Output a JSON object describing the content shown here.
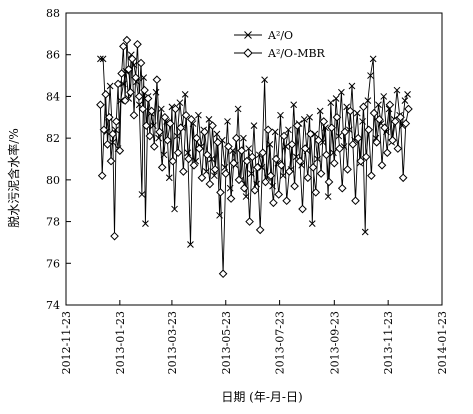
{
  "chart_data": {
    "type": "scatter",
    "xlabel": "日期 (年-月-日)",
    "ylabel": "脱水污泥含水率/%",
    "xlim": [
      "2012-11-23",
      "2014-01-23"
    ],
    "ylim": [
      74,
      88
    ],
    "x_ticks": [
      "2012-11-23",
      "2013-01-23",
      "2013-03-23",
      "2013-05-23",
      "2013-07-23",
      "2013-09-23",
      "2013-11-23",
      "2014-01-23"
    ],
    "y_ticks": [
      74,
      76,
      78,
      80,
      82,
      84,
      86,
      88
    ],
    "legend_position": "top-right",
    "series": [
      {
        "name": "A²/O",
        "marker": "x",
        "points": [
          [
            "2013-01-01",
            85.8
          ],
          [
            "2013-01-04",
            85.8
          ],
          [
            "2013-01-08",
            82.3
          ],
          [
            "2013-01-10",
            83.0
          ],
          [
            "2013-01-12",
            84.5
          ],
          [
            "2013-01-15",
            81.8
          ],
          [
            "2013-01-18",
            82.4
          ],
          [
            "2013-01-21",
            81.5
          ],
          [
            "2013-01-24",
            83.8
          ],
          [
            "2013-01-27",
            84.6
          ],
          [
            "2013-01-30",
            85.2
          ],
          [
            "2013-02-02",
            83.9
          ],
          [
            "2013-02-05",
            86.0
          ],
          [
            "2013-02-08",
            85.5
          ],
          [
            "2013-02-11",
            84.7
          ],
          [
            "2013-02-14",
            83.6
          ],
          [
            "2013-02-17",
            79.3
          ],
          [
            "2013-02-19",
            84.9
          ],
          [
            "2013-02-21",
            77.9
          ],
          [
            "2013-02-24",
            84.0
          ],
          [
            "2013-02-27",
            83.2
          ],
          [
            "2013-03-02",
            82.6
          ],
          [
            "2013-03-05",
            84.2
          ],
          [
            "2013-03-08",
            82.0
          ],
          [
            "2013-03-11",
            83.4
          ],
          [
            "2013-03-14",
            81.2
          ],
          [
            "2013-03-17",
            82.8
          ],
          [
            "2013-03-20",
            80.1
          ],
          [
            "2013-03-23",
            83.5
          ],
          [
            "2013-03-26",
            78.6
          ],
          [
            "2013-03-29",
            82.1
          ],
          [
            "2013-04-01",
            83.7
          ],
          [
            "2013-04-04",
            82.5
          ],
          [
            "2013-04-07",
            84.1
          ],
          [
            "2013-04-10",
            81.3
          ],
          [
            "2013-04-13",
            76.9
          ],
          [
            "2013-04-16",
            82.7
          ],
          [
            "2013-04-19",
            80.9
          ],
          [
            "2013-04-22",
            83.1
          ],
          [
            "2013-04-25",
            81.6
          ],
          [
            "2013-04-28",
            82.4
          ],
          [
            "2013-05-01",
            80.4
          ],
          [
            "2013-05-04",
            82.9
          ],
          [
            "2013-05-07",
            81.0
          ],
          [
            "2013-05-10",
            80.2
          ],
          [
            "2013-05-13",
            82.2
          ],
          [
            "2013-05-16",
            78.3
          ],
          [
            "2013-05-19",
            81.9
          ],
          [
            "2013-05-22",
            80.6
          ],
          [
            "2013-05-25",
            82.8
          ],
          [
            "2013-05-28",
            79.6
          ],
          [
            "2013-05-31",
            81.4
          ],
          [
            "2013-06-03",
            80.7
          ],
          [
            "2013-06-06",
            83.4
          ],
          [
            "2013-06-09",
            80.0
          ],
          [
            "2013-06-12",
            82.0
          ],
          [
            "2013-06-15",
            79.2
          ],
          [
            "2013-06-18",
            81.5
          ],
          [
            "2013-06-21",
            80.3
          ],
          [
            "2013-06-24",
            82.6
          ],
          [
            "2013-06-27",
            79.8
          ],
          [
            "2013-06-30",
            81.2
          ],
          [
            "2013-07-03",
            80.6
          ],
          [
            "2013-07-06",
            84.8
          ],
          [
            "2013-07-09",
            80.1
          ],
          [
            "2013-07-12",
            81.7
          ],
          [
            "2013-07-15",
            79.7
          ],
          [
            "2013-07-18",
            82.3
          ],
          [
            "2013-07-21",
            80.8
          ],
          [
            "2013-07-24",
            83.1
          ],
          [
            "2013-07-27",
            80.2
          ],
          [
            "2013-07-30",
            81.6
          ],
          [
            "2013-08-02",
            82.4
          ],
          [
            "2013-08-05",
            80.5
          ],
          [
            "2013-08-08",
            83.6
          ],
          [
            "2013-08-11",
            81.1
          ],
          [
            "2013-08-14",
            82.7
          ],
          [
            "2013-08-17",
            80.7
          ],
          [
            "2013-08-20",
            82.9
          ],
          [
            "2013-08-23",
            81.4
          ],
          [
            "2013-08-26",
            83.0
          ],
          [
            "2013-08-29",
            77.9
          ],
          [
            "2013-09-01",
            82.2
          ],
          [
            "2013-09-04",
            81.0
          ],
          [
            "2013-09-07",
            83.3
          ],
          [
            "2013-09-10",
            81.8
          ],
          [
            "2013-09-13",
            82.5
          ],
          [
            "2013-09-16",
            79.2
          ],
          [
            "2013-09-19",
            83.7
          ],
          [
            "2013-09-22",
            81.3
          ],
          [
            "2013-09-25",
            83.9
          ],
          [
            "2013-09-28",
            82.1
          ],
          [
            "2013-10-01",
            84.2
          ],
          [
            "2013-10-04",
            81.6
          ],
          [
            "2013-10-07",
            83.5
          ],
          [
            "2013-10-10",
            82.4
          ],
          [
            "2013-10-13",
            84.5
          ],
          [
            "2013-10-16",
            81.9
          ],
          [
            "2013-10-19",
            83.2
          ],
          [
            "2013-10-22",
            80.8
          ],
          [
            "2013-10-25",
            82.8
          ],
          [
            "2013-10-28",
            77.5
          ],
          [
            "2013-10-31",
            83.8
          ],
          [
            "2013-11-03",
            85.0
          ],
          [
            "2013-11-06",
            85.8
          ],
          [
            "2013-11-09",
            82.0
          ],
          [
            "2013-11-12",
            83.6
          ],
          [
            "2013-11-15",
            82.7
          ],
          [
            "2013-11-18",
            84.0
          ],
          [
            "2013-11-21",
            82.3
          ],
          [
            "2013-11-24",
            83.4
          ],
          [
            "2013-11-27",
            81.8
          ],
          [
            "2013-11-30",
            82.9
          ],
          [
            "2013-12-03",
            84.3
          ],
          [
            "2013-12-06",
            83.1
          ],
          [
            "2013-12-09",
            82.6
          ],
          [
            "2013-12-12",
            83.8
          ],
          [
            "2013-12-15",
            84.1
          ]
        ]
      },
      {
        "name": "A²/O-MBR",
        "marker": "diamond",
        "points": [
          [
            "2013-01-01",
            83.6
          ],
          [
            "2013-01-03",
            80.2
          ],
          [
            "2013-01-05",
            82.4
          ],
          [
            "2013-01-07",
            84.1
          ],
          [
            "2013-01-09",
            81.7
          ],
          [
            "2013-01-11",
            83.0
          ],
          [
            "2013-01-13",
            80.9
          ],
          [
            "2013-01-15",
            82.2
          ],
          [
            "2013-01-17",
            77.3
          ],
          [
            "2013-01-19",
            82.8
          ],
          [
            "2013-01-21",
            84.6
          ],
          [
            "2013-01-23",
            81.4
          ],
          [
            "2013-01-25",
            85.1
          ],
          [
            "2013-01-27",
            86.4
          ],
          [
            "2013-01-29",
            83.8
          ],
          [
            "2013-01-31",
            86.7
          ],
          [
            "2013-02-02",
            85.3
          ],
          [
            "2013-02-04",
            84.2
          ],
          [
            "2013-02-06",
            85.8
          ],
          [
            "2013-02-08",
            83.1
          ],
          [
            "2013-02-10",
            84.9
          ],
          [
            "2013-02-12",
            86.5
          ],
          [
            "2013-02-14",
            84.0
          ],
          [
            "2013-02-16",
            85.6
          ],
          [
            "2013-02-18",
            83.4
          ],
          [
            "2013-02-20",
            84.3
          ],
          [
            "2013-02-22",
            82.6
          ],
          [
            "2013-02-24",
            83.9
          ],
          [
            "2013-02-26",
            82.1
          ],
          [
            "2013-02-28",
            83.3
          ],
          [
            "2013-03-03",
            81.6
          ],
          [
            "2013-03-06",
            84.8
          ],
          [
            "2013-03-09",
            82.3
          ],
          [
            "2013-03-12",
            80.6
          ],
          [
            "2013-03-15",
            83.0
          ],
          [
            "2013-03-18",
            81.9
          ],
          [
            "2013-03-21",
            82.7
          ],
          [
            "2013-03-24",
            80.9
          ],
          [
            "2013-03-27",
            83.4
          ],
          [
            "2013-03-30",
            81.3
          ],
          [
            "2013-04-02",
            82.5
          ],
          [
            "2013-04-05",
            80.4
          ],
          [
            "2013-04-08",
            83.1
          ],
          [
            "2013-04-11",
            81.0
          ],
          [
            "2013-04-14",
            82.9
          ],
          [
            "2013-04-17",
            80.7
          ],
          [
            "2013-04-20",
            82.0
          ],
          [
            "2013-04-23",
            81.5
          ],
          [
            "2013-04-26",
            80.1
          ],
          [
            "2013-04-29",
            82.3
          ],
          [
            "2013-05-02",
            81.2
          ],
          [
            "2013-05-05",
            79.8
          ],
          [
            "2013-05-08",
            82.6
          ],
          [
            "2013-05-11",
            80.5
          ],
          [
            "2013-05-14",
            81.8
          ],
          [
            "2013-05-17",
            79.4
          ],
          [
            "2013-05-20",
            75.5
          ],
          [
            "2013-05-23",
            80.3
          ],
          [
            "2013-05-26",
            81.6
          ],
          [
            "2013-05-29",
            79.1
          ],
          [
            "2013-06-01",
            80.8
          ],
          [
            "2013-06-04",
            82.0
          ],
          [
            "2013-06-07",
            80.0
          ],
          [
            "2013-06-10",
            81.4
          ],
          [
            "2013-06-13",
            79.6
          ],
          [
            "2013-06-16",
            80.9
          ],
          [
            "2013-06-19",
            78.0
          ],
          [
            "2013-06-22",
            81.1
          ],
          [
            "2013-06-25",
            79.5
          ],
          [
            "2013-06-28",
            80.6
          ],
          [
            "2013-07-01",
            77.6
          ],
          [
            "2013-07-04",
            81.3
          ],
          [
            "2013-07-07",
            79.9
          ],
          [
            "2013-07-10",
            82.4
          ],
          [
            "2013-07-13",
            80.2
          ],
          [
            "2013-07-16",
            78.9
          ],
          [
            "2013-07-19",
            81.0
          ],
          [
            "2013-07-22",
            79.3
          ],
          [
            "2013-07-25",
            80.7
          ],
          [
            "2013-07-28",
            82.1
          ],
          [
            "2013-07-31",
            79.0
          ],
          [
            "2013-08-03",
            80.4
          ],
          [
            "2013-08-06",
            81.7
          ],
          [
            "2013-08-09",
            79.7
          ],
          [
            "2013-08-12",
            82.6
          ],
          [
            "2013-08-15",
            80.9
          ],
          [
            "2013-08-18",
            78.6
          ],
          [
            "2013-08-21",
            81.5
          ],
          [
            "2013-08-24",
            80.1
          ],
          [
            "2013-08-27",
            82.2
          ],
          [
            "2013-08-30",
            80.6
          ],
          [
            "2013-09-02",
            79.4
          ],
          [
            "2013-09-05",
            81.9
          ],
          [
            "2013-09-08",
            80.3
          ],
          [
            "2013-09-11",
            82.8
          ],
          [
            "2013-09-14",
            81.2
          ],
          [
            "2013-09-17",
            79.9
          ],
          [
            "2013-09-20",
            82.5
          ],
          [
            "2013-09-23",
            80.8
          ],
          [
            "2013-09-26",
            83.0
          ],
          [
            "2013-09-29",
            81.5
          ],
          [
            "2013-10-02",
            79.6
          ],
          [
            "2013-10-05",
            82.3
          ],
          [
            "2013-10-08",
            80.5
          ],
          [
            "2013-10-11",
            83.3
          ],
          [
            "2013-10-14",
            81.7
          ],
          [
            "2013-10-17",
            79.0
          ],
          [
            "2013-10-20",
            82.0
          ],
          [
            "2013-10-23",
            80.9
          ],
          [
            "2013-10-26",
            83.5
          ],
          [
            "2013-10-29",
            81.1
          ],
          [
            "2013-11-01",
            82.4
          ],
          [
            "2013-11-04",
            80.2
          ],
          [
            "2013-11-07",
            83.2
          ],
          [
            "2013-11-10",
            81.8
          ],
          [
            "2013-11-13",
            82.9
          ],
          [
            "2013-11-16",
            80.7
          ],
          [
            "2013-11-19",
            82.5
          ],
          [
            "2013-11-22",
            81.3
          ],
          [
            "2013-11-25",
            83.6
          ],
          [
            "2013-11-28",
            81.9
          ],
          [
            "2013-12-01",
            82.8
          ],
          [
            "2013-12-04",
            81.5
          ],
          [
            "2013-12-07",
            83.0
          ],
          [
            "2013-12-10",
            80.1
          ],
          [
            "2013-12-13",
            82.7
          ],
          [
            "2013-12-16",
            83.4
          ]
        ]
      }
    ]
  }
}
